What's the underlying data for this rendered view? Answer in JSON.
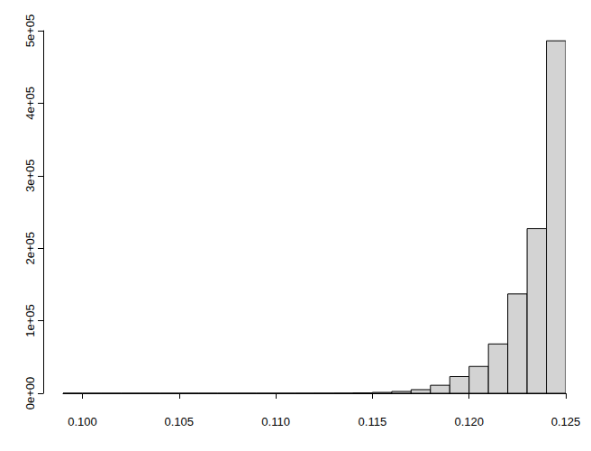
{
  "chart_data": {
    "type": "histogram",
    "bins": [
      0.099,
      0.1,
      0.101,
      0.102,
      0.103,
      0.104,
      0.105,
      0.106,
      0.107,
      0.108,
      0.109,
      0.11,
      0.111,
      0.112,
      0.113,
      0.114,
      0.115,
      0.116,
      0.117,
      0.118,
      0.119,
      0.12,
      0.121,
      0.122,
      0.123,
      0.124,
      0.125
    ],
    "values": [
      1,
      0,
      1,
      1,
      2,
      3,
      5,
      8,
      12,
      20,
      30,
      50,
      80,
      120,
      200,
      500,
      1200,
      2500,
      5000,
      11000,
      23000,
      37000,
      68000,
      137000,
      227000,
      486000
    ],
    "color": "#d3d3d3",
    "xlim": [
      0.099,
      0.125
    ],
    "xticks": [
      {
        "value": 0.1,
        "label": "0.100"
      },
      0.105,
      {
        "value": 0.11,
        "label": "0.110"
      },
      0.115,
      {
        "value": 0.12,
        "label": "0.120"
      },
      0.125
    ],
    "ylim": [
      0,
      500000
    ],
    "yticks": [
      {
        "value": 0,
        "label": "0e+00"
      },
      {
        "value": 100000,
        "label": "1e+05"
      },
      {
        "value": 200000,
        "label": "2e+05"
      },
      {
        "value": 300000,
        "label": "3e+05"
      },
      {
        "value": 400000,
        "label": "4e+05"
      },
      {
        "value": 500000,
        "label": "5e+05"
      }
    ],
    "grid": false
  }
}
